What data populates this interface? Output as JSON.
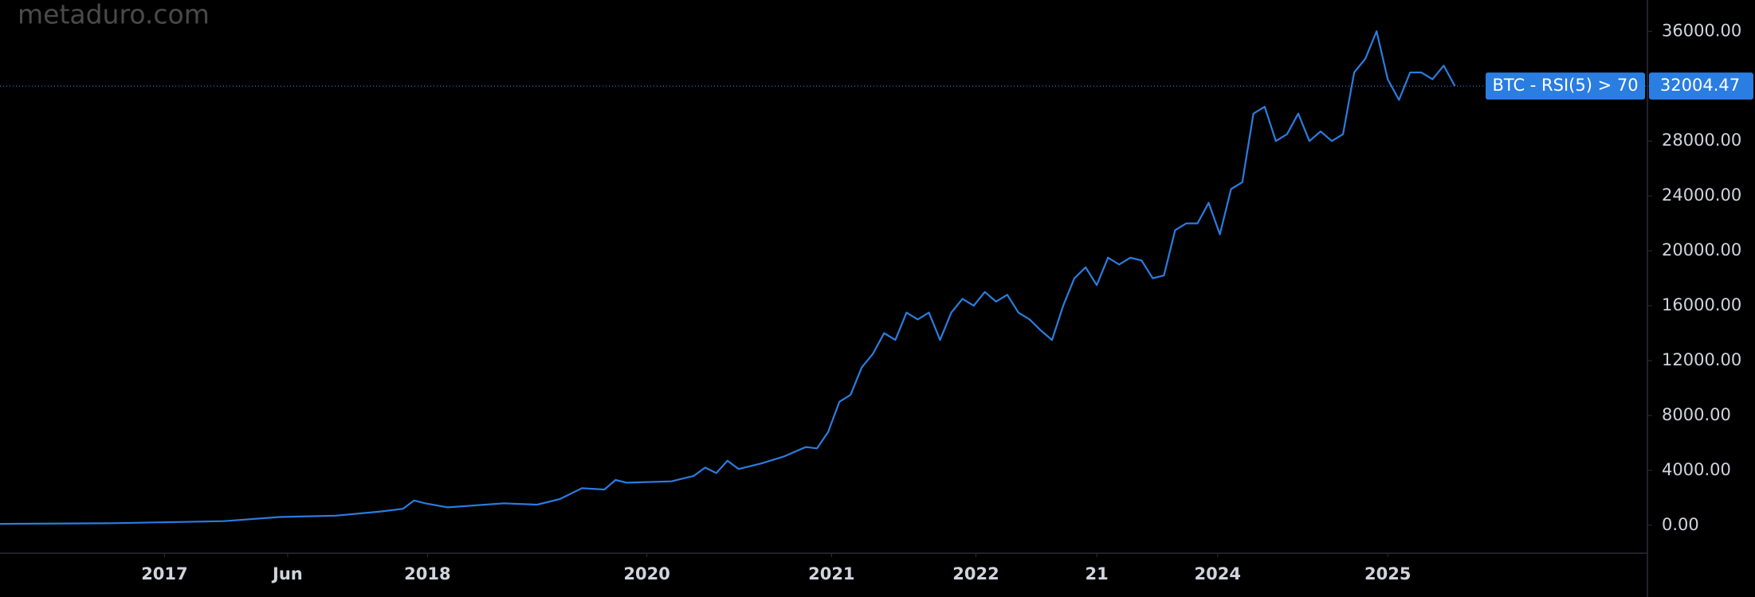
{
  "chart_data": {
    "type": "line",
    "watermark": "metaduro.com",
    "x": [
      0,
      10,
      20,
      25,
      30,
      34,
      36,
      37,
      38,
      40,
      45,
      48,
      50,
      52,
      54,
      55,
      56,
      60,
      62,
      63,
      64,
      65,
      66,
      68,
      70,
      72,
      73,
      74,
      75,
      76,
      77,
      78,
      79,
      80,
      81,
      82,
      83,
      84,
      85,
      86,
      87,
      88,
      89,
      90,
      91,
      92,
      93,
      94,
      95,
      96,
      97,
      98,
      99,
      100,
      101,
      102,
      103,
      104,
      105,
      106,
      107,
      108,
      109,
      110,
      111,
      112,
      113,
      114,
      115,
      116,
      117,
      118,
      119,
      120,
      121,
      122,
      123,
      124,
      125,
      126,
      127,
      128,
      129,
      130
    ],
    "series": [
      {
        "name": "BTC - RSI(5) > 70",
        "color": "#2a7de1",
        "values": [
          100,
          150,
          300,
          600,
          700,
          1000,
          1200,
          1800,
          1600,
          1300,
          1600,
          1500,
          1900,
          2700,
          2600,
          3300,
          3100,
          3200,
          3600,
          4200,
          3800,
          4700,
          4100,
          4500,
          5000,
          5700,
          5600,
          6800,
          9000,
          9500,
          11500,
          12500,
          14000,
          13500,
          15500,
          15000,
          15500,
          13500,
          15500,
          16500,
          16000,
          17000,
          16300,
          16800,
          15500,
          15000,
          14200,
          13500,
          16000,
          18000,
          18800,
          17500,
          19500,
          19000,
          19500,
          19300,
          18000,
          18200,
          21500,
          22000,
          22000,
          23500,
          21200,
          24500,
          25000,
          30000,
          30500,
          28000,
          28500,
          30000,
          28000,
          28700,
          28000,
          28500,
          33000,
          34000,
          36000,
          32500,
          31000,
          33000,
          33000,
          32500,
          33500,
          32004.47
        ]
      }
    ],
    "xlim": [
      0,
      147.2
    ],
    "xticks": [
      {
        "value": 14.7,
        "label": "2017"
      },
      {
        "value": 25.7,
        "label": "Jun"
      },
      {
        "value": 38.2,
        "label": "2018"
      },
      {
        "value": 57.8,
        "label": "2020"
      },
      {
        "value": 74.3,
        "label": "2021"
      },
      {
        "value": 87.2,
        "label": "2022"
      },
      {
        "value": 98.0,
        "label": "21"
      },
      {
        "value": 108.8,
        "label": "2024"
      },
      {
        "value": 124.0,
        "label": "2025"
      }
    ],
    "ylim": [
      -2040,
      38280
    ],
    "yticks": [
      {
        "value": 0,
        "label": "0.00"
      },
      {
        "value": 4000,
        "label": "4000.00"
      },
      {
        "value": 8000,
        "label": "8000.00"
      },
      {
        "value": 12000,
        "label": "12000.00"
      },
      {
        "value": 16000,
        "label": "16000.00"
      },
      {
        "value": 20000,
        "label": "20000.00"
      },
      {
        "value": 24000,
        "label": "24000.00"
      },
      {
        "value": 28000,
        "label": "28000.00"
      },
      {
        "value": 32000,
        "label": "32000.00"
      },
      {
        "value": 36000,
        "label": "36000.00"
      }
    ],
    "grid": false
  }
}
